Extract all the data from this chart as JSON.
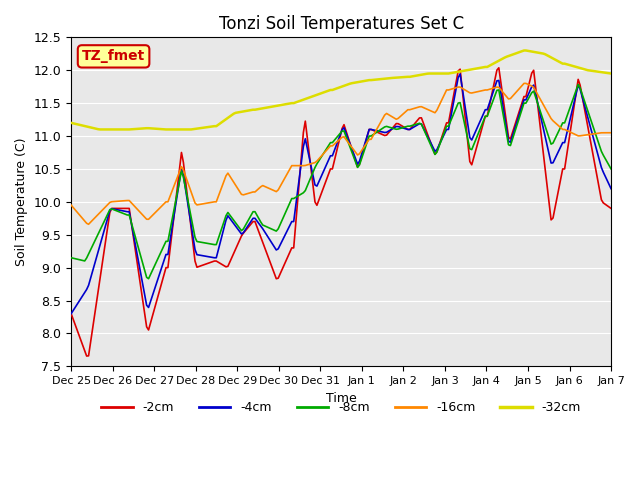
{
  "title": "Tonzi Soil Temperatures Set C",
  "xlabel": "Time",
  "ylabel": "Soil Temperature (C)",
  "ylim": [
    7.5,
    12.5
  ],
  "background_color": "#e8e8e8",
  "legend_label": "TZ_fmet",
  "legend_box_color": "#ffff99",
  "legend_box_edge": "#cc0000",
  "series_colors": {
    "-2cm": "#dd0000",
    "-4cm": "#0000cc",
    "-8cm": "#00aa00",
    "-16cm": "#ff8800",
    "-32cm": "#dddd00"
  },
  "xtick_labels": [
    "Dec 25",
    "Dec 26",
    "Dec 27",
    "Dec 28",
    "Dec 29",
    "Dec 30",
    "Dec 31",
    "Jan 1",
    "Jan 2",
    "Jan 3",
    "Jan 4",
    "Jan 5",
    "Jan 6",
    "Jan 7"
  ],
  "n_points": 300
}
